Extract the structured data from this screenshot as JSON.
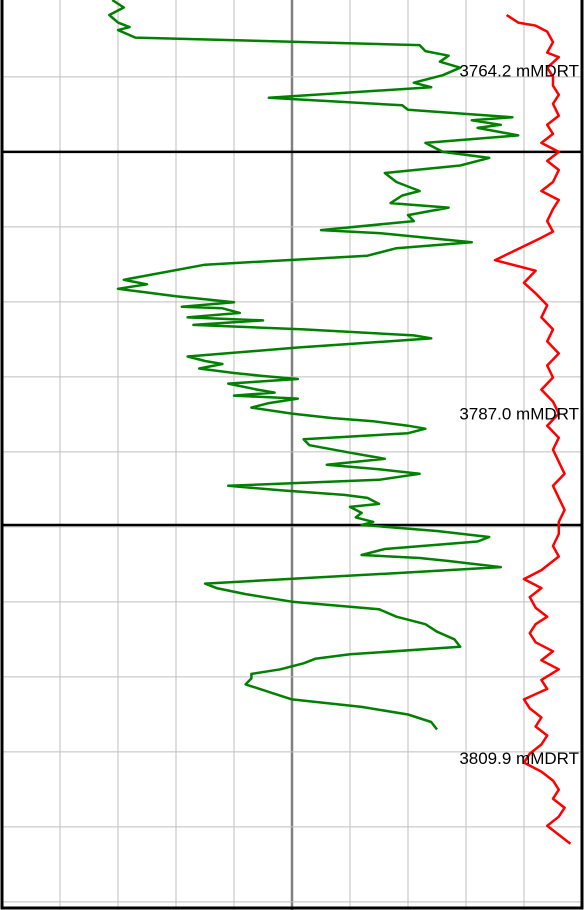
{
  "chart_data": {
    "type": "line",
    "title": "",
    "y_axis": {
      "label": "",
      "unit": "mMDRT",
      "range": [
        3759.5,
        3820.0
      ],
      "inverted": true
    },
    "x_axis": {
      "label": "",
      "range": [
        0,
        10
      ]
    },
    "grid": true,
    "depth_labels": [
      "3764.2 mMDRT",
      "3787.0 mMDRT",
      "3809.9 mMDRT"
    ],
    "depth_marks": [
      3764.2,
      3787.0,
      3809.9
    ],
    "major_depths": [
      3769.6,
      3794.4
    ],
    "colors": {
      "green_curve": "#008000",
      "red_curve": "#ff0000",
      "grid": "#bfbfbf",
      "center_line": "#808080",
      "major_line": "#000000"
    },
    "series": [
      {
        "color": "#008000",
        "points": [
          [
            1.9,
            3759.5
          ],
          [
            2.1,
            3760.0
          ],
          [
            1.85,
            3760.5
          ],
          [
            2.0,
            3761.0
          ],
          [
            2.2,
            3761.3
          ],
          [
            2.0,
            3761.5
          ],
          [
            2.3,
            3762.0
          ],
          [
            7.2,
            3762.5
          ],
          [
            7.3,
            3762.9
          ],
          [
            7.7,
            3763.2
          ],
          [
            7.55,
            3763.6
          ],
          [
            7.9,
            3764.0
          ],
          [
            7.6,
            3764.5
          ],
          [
            7.1,
            3765.0
          ],
          [
            7.4,
            3765.3
          ],
          [
            4.6,
            3766.0
          ],
          [
            6.9,
            3766.5
          ],
          [
            7.0,
            3766.8
          ],
          [
            8.8,
            3767.3
          ],
          [
            8.1,
            3767.5
          ],
          [
            8.6,
            3767.8
          ],
          [
            8.2,
            3768.0
          ],
          [
            8.9,
            3768.5
          ],
          [
            7.3,
            3769.0
          ],
          [
            7.6,
            3769.6
          ],
          [
            8.4,
            3770.0
          ],
          [
            7.9,
            3770.5
          ],
          [
            6.6,
            3771.0
          ],
          [
            6.8,
            3771.6
          ],
          [
            7.2,
            3772.2
          ],
          [
            6.9,
            3772.5
          ],
          [
            6.7,
            3773.0
          ],
          [
            7.7,
            3773.3
          ],
          [
            7.0,
            3773.8
          ],
          [
            7.1,
            3774.2
          ],
          [
            5.5,
            3774.8
          ],
          [
            6.5,
            3775.0
          ],
          [
            8.1,
            3775.6
          ],
          [
            6.8,
            3776.0
          ],
          [
            6.3,
            3776.5
          ],
          [
            3.5,
            3777.1
          ],
          [
            2.1,
            3778.1
          ],
          [
            2.5,
            3778.4
          ],
          [
            2.0,
            3778.7
          ],
          [
            2.4,
            3778.9
          ],
          [
            3.0,
            3779.2
          ],
          [
            4.0,
            3779.6
          ],
          [
            3.1,
            3779.9
          ],
          [
            3.8,
            3780.0
          ],
          [
            4.1,
            3780.3
          ],
          [
            3.2,
            3780.6
          ],
          [
            4.5,
            3780.8
          ],
          [
            3.3,
            3781.1
          ],
          [
            5.2,
            3781.4
          ],
          [
            7.1,
            3781.8
          ],
          [
            7.4,
            3782.0
          ],
          [
            5.1,
            3782.6
          ],
          [
            3.2,
            3783.2
          ],
          [
            3.5,
            3783.5
          ],
          [
            3.8,
            3783.7
          ],
          [
            3.4,
            3784.0
          ],
          [
            4.0,
            3784.3
          ],
          [
            4.5,
            3784.5
          ],
          [
            5.1,
            3784.7
          ],
          [
            3.9,
            3785.0
          ],
          [
            4.4,
            3785.4
          ],
          [
            4.7,
            3785.6
          ],
          [
            4.0,
            3785.8
          ],
          [
            5.1,
            3786.0
          ],
          [
            4.6,
            3786.3
          ],
          [
            4.3,
            3786.6
          ],
          [
            5.0,
            3787.0
          ],
          [
            5.7,
            3787.3
          ],
          [
            6.4,
            3787.5
          ],
          [
            7.0,
            3787.8
          ],
          [
            7.3,
            3788.0
          ],
          [
            7.0,
            3788.3
          ],
          [
            5.2,
            3788.7
          ],
          [
            5.3,
            3789.1
          ],
          [
            6.0,
            3789.6
          ],
          [
            6.6,
            3790.0
          ],
          [
            5.6,
            3790.4
          ],
          [
            6.5,
            3790.7
          ],
          [
            7.2,
            3791.0
          ],
          [
            6.5,
            3791.4
          ],
          [
            3.9,
            3791.8
          ],
          [
            4.8,
            3792.1
          ],
          [
            5.9,
            3792.4
          ],
          [
            6.3,
            3792.6
          ],
          [
            6.5,
            3793.0
          ],
          [
            6.0,
            3793.2
          ],
          [
            6.2,
            3793.6
          ],
          [
            6.1,
            3793.9
          ],
          [
            6.4,
            3794.2
          ],
          [
            6.2,
            3794.4
          ],
          [
            7.5,
            3794.8
          ],
          [
            8.4,
            3795.2
          ],
          [
            8.2,
            3795.5
          ],
          [
            6.6,
            3796.0
          ],
          [
            6.2,
            3796.4
          ],
          [
            7.2,
            3796.6
          ],
          [
            7.7,
            3796.8
          ],
          [
            8.6,
            3797.2
          ],
          [
            6.8,
            3797.6
          ],
          [
            3.5,
            3798.3
          ],
          [
            3.7,
            3798.6
          ],
          [
            4.2,
            3799.0
          ],
          [
            5.0,
            3799.5
          ],
          [
            6.5,
            3800.0
          ],
          [
            6.8,
            3800.5
          ],
          [
            7.3,
            3801.0
          ],
          [
            7.5,
            3801.5
          ],
          [
            7.8,
            3802.0
          ],
          [
            7.9,
            3802.5
          ],
          [
            6.0,
            3803.0
          ],
          [
            5.4,
            3803.3
          ],
          [
            5.2,
            3803.6
          ],
          [
            4.8,
            3804.0
          ],
          [
            4.3,
            3804.3
          ],
          [
            4.3,
            3804.6
          ],
          [
            4.2,
            3805.0
          ],
          [
            4.6,
            3805.5
          ],
          [
            5.0,
            3806.0
          ],
          [
            6.2,
            3806.5
          ],
          [
            7.0,
            3807.0
          ],
          [
            7.4,
            3807.5
          ],
          [
            7.5,
            3808.0
          ]
        ]
      },
      {
        "color": "#ff0000",
        "points": [
          [
            8.7,
            3760.5
          ],
          [
            8.9,
            3761.0
          ],
          [
            9.2,
            3761.2
          ],
          [
            9.4,
            3761.6
          ],
          [
            9.5,
            3762.3
          ],
          [
            9.4,
            3763.0
          ],
          [
            9.6,
            3763.3
          ],
          [
            9.4,
            3764.0
          ],
          [
            9.5,
            3764.6
          ],
          [
            9.5,
            3765.2
          ],
          [
            9.6,
            3765.8
          ],
          [
            9.5,
            3766.4
          ],
          [
            9.6,
            3767.2
          ],
          [
            9.4,
            3767.8
          ],
          [
            9.5,
            3768.4
          ],
          [
            9.3,
            3769.0
          ],
          [
            9.6,
            3769.6
          ],
          [
            9.4,
            3770.2
          ],
          [
            9.6,
            3770.8
          ],
          [
            9.5,
            3771.6
          ],
          [
            9.3,
            3772.2
          ],
          [
            9.6,
            3772.8
          ],
          [
            9.5,
            3773.4
          ],
          [
            9.4,
            3774.2
          ],
          [
            9.5,
            3774.9
          ],
          [
            9.3,
            3775.3
          ],
          [
            8.5,
            3776.8
          ],
          [
            9.2,
            3777.5
          ],
          [
            9.0,
            3778.3
          ],
          [
            9.2,
            3779.0
          ],
          [
            9.4,
            3779.8
          ],
          [
            9.3,
            3780.6
          ],
          [
            9.5,
            3781.4
          ],
          [
            9.4,
            3782.2
          ],
          [
            9.6,
            3783.0
          ],
          [
            9.4,
            3783.8
          ],
          [
            9.5,
            3784.6
          ],
          [
            9.3,
            3785.4
          ],
          [
            9.5,
            3786.2
          ],
          [
            9.6,
            3787.0
          ],
          [
            9.4,
            3787.8
          ],
          [
            9.6,
            3788.6
          ],
          [
            9.5,
            3789.4
          ],
          [
            9.6,
            3790.2
          ],
          [
            9.7,
            3791.0
          ],
          [
            9.5,
            3791.8
          ],
          [
            9.6,
            3792.6
          ],
          [
            9.7,
            3793.4
          ],
          [
            9.6,
            3794.2
          ],
          [
            9.6,
            3795.0
          ],
          [
            9.5,
            3795.8
          ],
          [
            9.6,
            3796.5
          ],
          [
            9.3,
            3797.4
          ],
          [
            9.0,
            3798.0
          ],
          [
            9.3,
            3798.6
          ],
          [
            9.1,
            3799.2
          ],
          [
            9.2,
            3799.9
          ],
          [
            9.4,
            3800.5
          ],
          [
            9.2,
            3801.0
          ],
          [
            9.1,
            3801.6
          ],
          [
            9.2,
            3802.2
          ],
          [
            9.5,
            3802.8
          ],
          [
            9.3,
            3803.4
          ],
          [
            9.6,
            3804.0
          ],
          [
            9.3,
            3804.7
          ],
          [
            9.4,
            3805.3
          ],
          [
            9.0,
            3806.0
          ],
          [
            9.1,
            3806.6
          ],
          [
            9.3,
            3807.2
          ],
          [
            9.2,
            3807.8
          ],
          [
            9.4,
            3808.4
          ],
          [
            9.3,
            3809.0
          ],
          [
            9.1,
            3809.6
          ],
          [
            9.0,
            3810.2
          ],
          [
            9.3,
            3810.8
          ],
          [
            9.5,
            3811.4
          ],
          [
            9.6,
            3812.0
          ],
          [
            9.5,
            3812.6
          ],
          [
            9.7,
            3813.2
          ],
          [
            9.6,
            3813.8
          ],
          [
            9.4,
            3814.4
          ],
          [
            9.6,
            3815.0
          ],
          [
            9.8,
            3815.6
          ]
        ]
      }
    ]
  }
}
